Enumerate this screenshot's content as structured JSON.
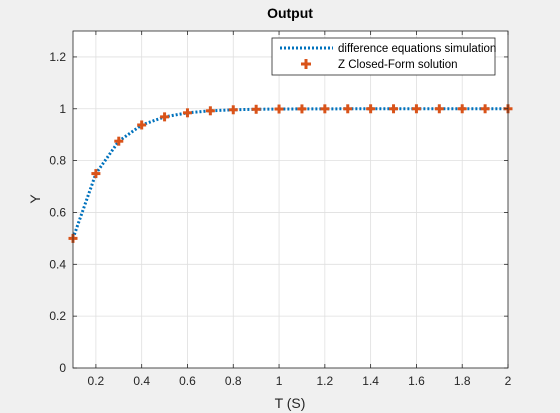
{
  "chart_data": {
    "type": "line",
    "title": "Output",
    "xlabel": "T (S)",
    "ylabel": "Y",
    "xlim": [
      0.1,
      2.0
    ],
    "ylim": [
      0,
      1.3
    ],
    "xticks": [
      0.2,
      0.4,
      0.6,
      0.8,
      1.0,
      1.2,
      1.4,
      1.6,
      1.8,
      2.0
    ],
    "xtick_labels": [
      "0.2",
      "0.4",
      "0.6",
      "0.8",
      "1",
      "1.2",
      "1.4",
      "1.6",
      "1.8",
      "2"
    ],
    "yticks": [
      0,
      0.2,
      0.4,
      0.6,
      0.8,
      1.0,
      1.2
    ],
    "ytick_labels": [
      "0",
      "0.2",
      "0.4",
      "0.6",
      "0.8",
      "1",
      "1.2"
    ],
    "grid": true,
    "legend_position": "top-right",
    "x": [
      0.1,
      0.2,
      0.3,
      0.4,
      0.5,
      0.6,
      0.7,
      0.8,
      0.9,
      1.0,
      1.1,
      1.2,
      1.3,
      1.4,
      1.5,
      1.6,
      1.7,
      1.8,
      1.9,
      2.0
    ],
    "series": [
      {
        "name": "difference equations simulation",
        "style": "dotted line",
        "color": "#0072BD",
        "values": [
          0.5,
          0.75,
          0.875,
          0.9375,
          0.96875,
          0.984375,
          0.9921875,
          0.99609375,
          0.998046875,
          0.9990234375,
          0.99951171875,
          0.999755859375,
          0.9998779296875,
          0.99993896484375,
          0.999969482421875,
          0.9999847412109375,
          0.9999923706054688,
          0.9999961853027344,
          0.9999980926513672,
          0.9999990463256836
        ]
      },
      {
        "name": "Z Closed-Form solution",
        "style": "plus markers",
        "color": "#D95319",
        "values": [
          0.5,
          0.75,
          0.875,
          0.9375,
          0.96875,
          0.984375,
          0.9921875,
          0.99609375,
          0.998046875,
          0.9990234375,
          0.99951171875,
          0.999755859375,
          0.9998779296875,
          0.99993896484375,
          0.999969482421875,
          0.9999847412109375,
          0.9999923706054688,
          0.9999961853027344,
          0.9999980926513672,
          0.9999990463256836
        ]
      }
    ]
  }
}
